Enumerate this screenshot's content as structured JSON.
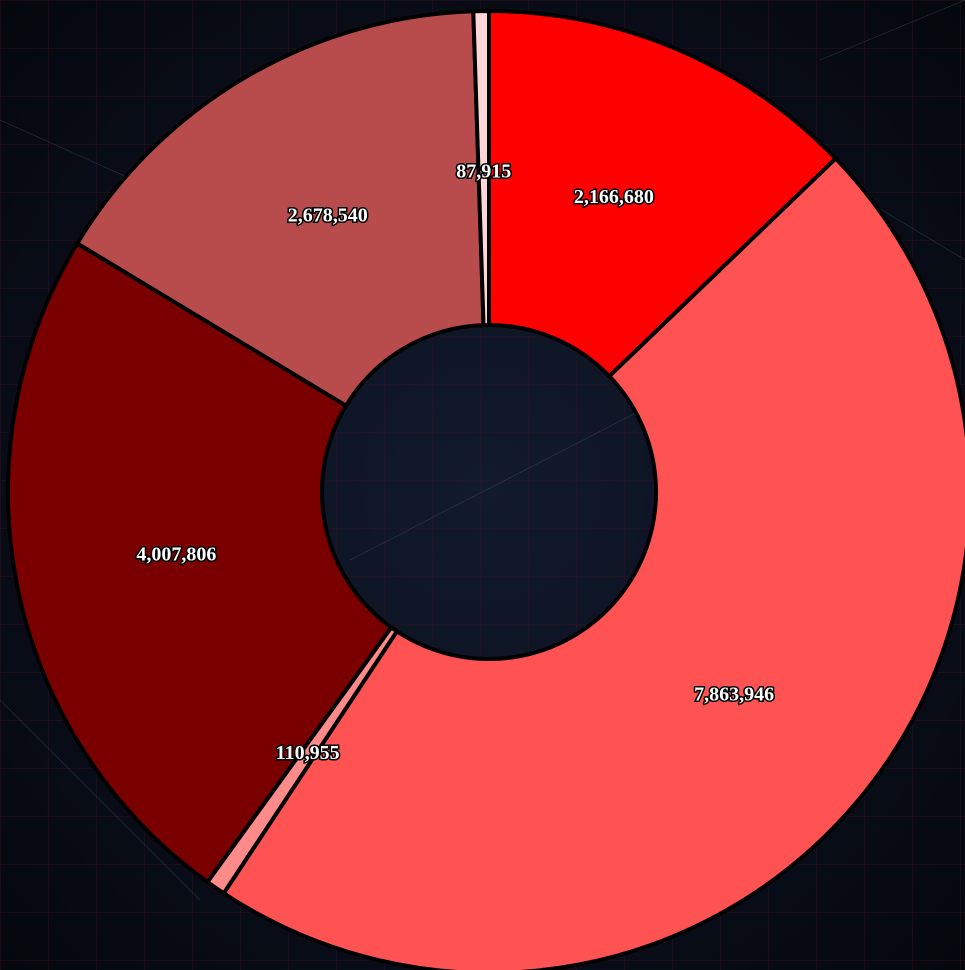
{
  "chart_data": {
    "type": "donut",
    "values": [
      2166680,
      7863946,
      110955,
      4007806,
      2678540,
      87915
    ],
    "value_labels": [
      "2,166,680",
      "7,863,946",
      "110,955",
      "4,007,806",
      "2,678,540",
      "87,915"
    ],
    "colors": [
      "#ff0000",
      "#ff5252",
      "#ff8a8a",
      "#7a0000",
      "#b84c4c",
      "#ffd6d6"
    ]
  }
}
